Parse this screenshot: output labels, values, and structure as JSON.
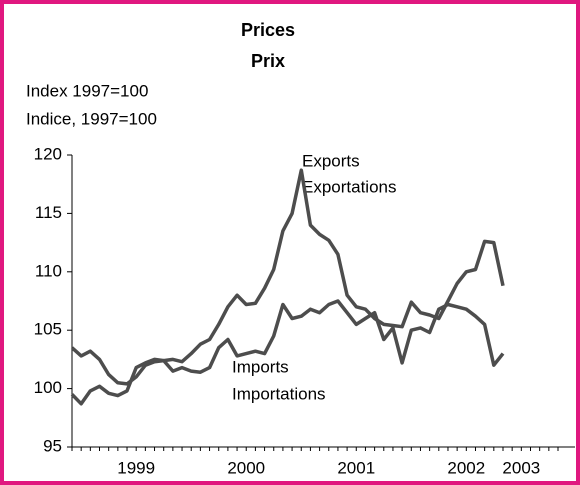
{
  "chart_data": {
    "type": "line",
    "title": "Prices",
    "subtitle": "Prix",
    "y_label": "Index 1997=100",
    "y_label_2": "Indice, 1997=100",
    "annotations": [
      "Exports",
      "Exportations",
      "Imports",
      "Importations"
    ],
    "categories": [
      null,
      null,
      null,
      null,
      null,
      null,
      null,
      "1999",
      null,
      null,
      null,
      null,
      null,
      null,
      null,
      null,
      null,
      null,
      null,
      "2000",
      null,
      null,
      null,
      null,
      null,
      null,
      null,
      null,
      null,
      null,
      null,
      "2001",
      null,
      null,
      null,
      null,
      null,
      null,
      null,
      null,
      null,
      null,
      null,
      "2002",
      null,
      null,
      null,
      null,
      null,
      "2003",
      null,
      null,
      null,
      null
    ],
    "series": [
      {
        "name": "Exports",
        "color": "#4d4d4d",
        "values": [
          103.5,
          102.8,
          103.2,
          102.5,
          101.2,
          100.5,
          100.4,
          101.0,
          102.0,
          102.3,
          102.4,
          102.5,
          102.3,
          103.0,
          103.8,
          104.2,
          105.5,
          107.0,
          108.0,
          107.2,
          107.3,
          108.6,
          110.2,
          113.5,
          115.0,
          118.7,
          114.0,
          113.2,
          112.7,
          111.5,
          108.0,
          107.0,
          106.8,
          106.0,
          105.5,
          105.4,
          105.3,
          107.4,
          106.5,
          106.3,
          106.0,
          107.5,
          109.0,
          110.0,
          110.2,
          112.6,
          112.5,
          108.8,
          null,
          null,
          null,
          null,
          null,
          null
        ]
      },
      {
        "name": "Imports",
        "color": "#4d4d4d",
        "values": [
          99.5,
          98.7,
          99.8,
          100.2,
          99.6,
          99.4,
          99.8,
          101.8,
          102.2,
          102.5,
          102.4,
          101.5,
          101.8,
          101.5,
          101.4,
          101.8,
          103.5,
          104.2,
          102.8,
          103.0,
          103.2,
          103.0,
          104.5,
          107.2,
          106.0,
          106.2,
          106.8,
          106.5,
          107.2,
          107.5,
          106.5,
          105.5,
          106.0,
          106.5,
          104.2,
          105.2,
          102.2,
          105.0,
          105.2,
          104.8,
          106.8,
          107.2,
          107.0,
          106.8,
          106.2,
          105.5,
          102.0,
          103.0,
          null,
          null,
          null,
          null,
          null,
          null
        ]
      }
    ],
    "ylim": [
      95,
      120
    ],
    "yticks": [
      95,
      100,
      105,
      110,
      115,
      120
    ],
    "grid": false
  }
}
